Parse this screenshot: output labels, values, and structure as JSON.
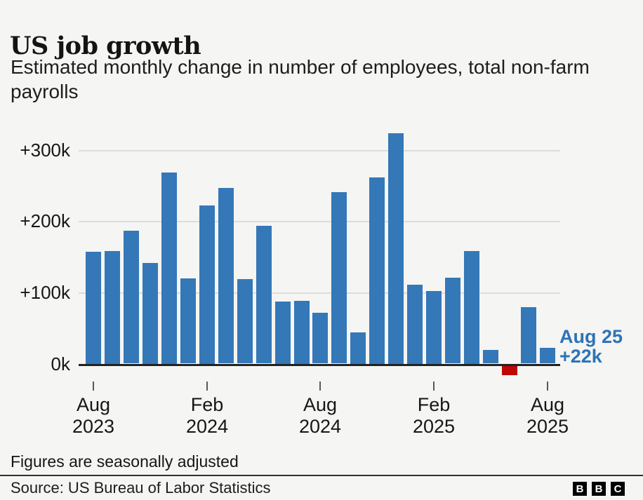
{
  "header": {
    "title": "US job growth",
    "subtitle": "Estimated monthly change in number of employees, total non-farm payrolls"
  },
  "footer": {
    "footnote": "Figures are seasonally adjusted",
    "source": "Source: US Bureau of Labor Statistics",
    "logo_letters": [
      "B",
      "B",
      "C"
    ]
  },
  "colors": {
    "background": "#f5f5f3",
    "bar_positive": "#3478b8",
    "bar_negative": "#bf0605",
    "annotation_text": "#2c74b7",
    "gridline": "#dcdcda",
    "axis_line": "#222222",
    "tick_mark": "#5a5a5a",
    "text": "#161616"
  },
  "chart_data": {
    "type": "bar",
    "title": "US job growth",
    "subtitle": "Estimated monthly change in number of employees, total non-farm payrolls",
    "unit": "thousands of employees (k)",
    "categories": [
      "Aug 2023",
      "Sep 2023",
      "Oct 2023",
      "Nov 2023",
      "Dec 2023",
      "Jan 2024",
      "Feb 2024",
      "Mar 2024",
      "Apr 2024",
      "May 2024",
      "Jun 2024",
      "Jul 2024",
      "Aug 2024",
      "Sep 2024",
      "Oct 2024",
      "Nov 2024",
      "Dec 2024",
      "Jan 2025",
      "Feb 2025",
      "Mar 2025",
      "Apr 2025",
      "May 2025",
      "Jun 2025",
      "Jul 2025",
      "Aug 2025"
    ],
    "values": [
      157,
      158,
      186,
      141,
      268,
      119,
      222,
      246,
      118,
      193,
      87,
      88,
      71,
      240,
      44,
      261,
      323,
      111,
      102,
      120,
      158,
      19,
      -13,
      79,
      22
    ],
    "ylim": [
      -30,
      340
    ],
    "grid": true,
    "legend": "none",
    "y_ticks": [
      {
        "label": "0k",
        "value": 0
      },
      {
        "label": "+100k",
        "value": 100
      },
      {
        "label": "+200k",
        "value": 200
      },
      {
        "label": "+300k",
        "value": 300
      }
    ],
    "x_ticks": [
      {
        "index": 0,
        "line1": "Aug",
        "line2": "2023"
      },
      {
        "index": 6,
        "line1": "Feb",
        "line2": "2024"
      },
      {
        "index": 12,
        "line1": "Aug",
        "line2": "2024"
      },
      {
        "index": 18,
        "line1": "Feb",
        "line2": "2025"
      },
      {
        "index": 24,
        "line1": "Aug",
        "line2": "2025"
      }
    ],
    "annotation": {
      "label": "Aug 25",
      "value_label": "+22k",
      "month": "Aug 2025",
      "value": 22
    }
  }
}
